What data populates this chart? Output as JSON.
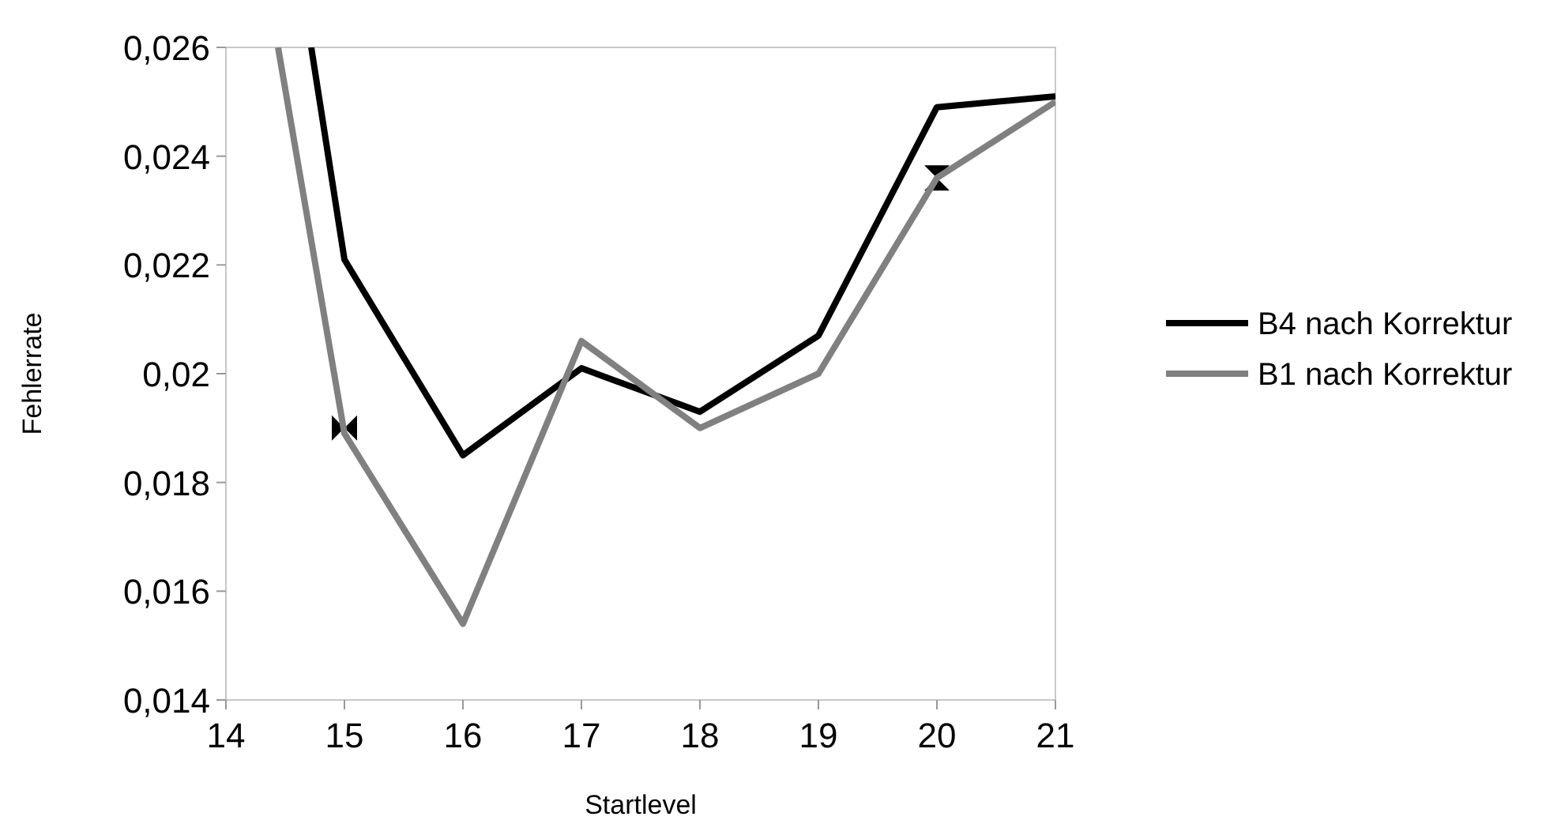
{
  "chart_data": {
    "type": "line",
    "xlabel": "Startlevel",
    "ylabel": "Fehlerrate",
    "xlim": [
      14,
      21
    ],
    "ylim": [
      0.014,
      0.026
    ],
    "xticks": [
      14,
      15,
      16,
      17,
      18,
      19,
      20,
      21
    ],
    "yticks": [
      {
        "value": 0.014,
        "label": "0,014"
      },
      {
        "value": 0.016,
        "label": "0,016"
      },
      {
        "value": 0.018,
        "label": "0,018"
      },
      {
        "value": 0.02,
        "label": "0,02"
      },
      {
        "value": 0.022,
        "label": "0,022"
      },
      {
        "value": 0.024,
        "label": "0,024"
      },
      {
        "value": 0.026,
        "label": "0,026"
      }
    ],
    "grid": false,
    "legend": "right",
    "line_style": "solid",
    "series": [
      {
        "type": "scatter",
        "marker": "triangle",
        "color": "#000000",
        "x": [
          15
        ],
        "values": [
          0.019
        ]
      },
      {
        "type": "scatter",
        "marker": "triangle",
        "color": "#000000",
        "x": [
          20
        ],
        "values": [
          0.0236
        ]
      },
      {
        "name": "B4 nach Korrektur",
        "color": "#000000",
        "x": [
          14.72,
          15,
          16,
          17,
          18,
          19,
          20,
          21
        ],
        "values": [
          0.026,
          0.0221,
          0.0185,
          0.0201,
          0.0193,
          0.0207,
          0.0249,
          0.0251
        ]
      },
      {
        "name": "B1 nach Korrektur",
        "color": "#808080",
        "x": [
          14.44,
          15,
          16,
          17,
          18,
          19,
          20,
          21
        ],
        "values": [
          0.026,
          0.0189,
          0.0154,
          0.0206,
          0.019,
          0.02,
          0.0236,
          0.025
        ]
      }
    ]
  }
}
